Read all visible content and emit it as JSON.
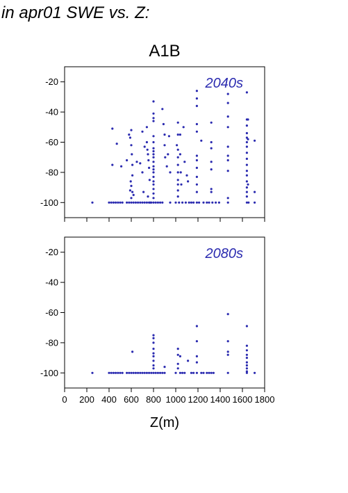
{
  "heading": "in apr01 SWE vs. Z:",
  "scenario": "A1B",
  "xlabel": "Z(m)",
  "colors": {
    "points": "#2b2bb0",
    "period_label": "#2b2bb0",
    "frame": "#000000"
  },
  "chart_data": [
    {
      "type": "scatter",
      "annotation": "2040s",
      "xlim": [
        0,
        1800
      ],
      "ylim": [
        -110,
        -10
      ],
      "xticks": [
        "0",
        "200",
        "400",
        "600",
        "800",
        "1000",
        "1200",
        "1400",
        "1600",
        "1800"
      ],
      "yticks": [
        "-20",
        "-40",
        "-60",
        "-80",
        "-100"
      ],
      "show_x_ticklabels": false,
      "grid": false,
      "points": [
        [
          250,
          -100
        ],
        [
          400,
          -100
        ],
        [
          420,
          -100
        ],
        [
          440,
          -100
        ],
        [
          460,
          -100
        ],
        [
          480,
          -100
        ],
        [
          500,
          -100
        ],
        [
          520,
          -100
        ],
        [
          430,
          -51
        ],
        [
          430,
          -75
        ],
        [
          470,
          -61
        ],
        [
          510,
          -76
        ],
        [
          560,
          -100
        ],
        [
          580,
          -100
        ],
        [
          600,
          -100
        ],
        [
          620,
          -100
        ],
        [
          640,
          -100
        ],
        [
          660,
          -100
        ],
        [
          680,
          -100
        ],
        [
          700,
          -100
        ],
        [
          720,
          -100
        ],
        [
          740,
          -100
        ],
        [
          760,
          -100
        ],
        [
          780,
          -100
        ],
        [
          560,
          -72
        ],
        [
          580,
          -55
        ],
        [
          590,
          -57
        ],
        [
          600,
          -52
        ],
        [
          600,
          -62
        ],
        [
          605,
          -68
        ],
        [
          610,
          -75
        ],
        [
          610,
          -82
        ],
        [
          595,
          -86
        ],
        [
          600,
          -89
        ],
        [
          590,
          -92
        ],
        [
          610,
          -93
        ],
        [
          600,
          -97
        ],
        [
          620,
          -95
        ],
        [
          650,
          -73
        ],
        [
          680,
          -74
        ],
        [
          700,
          -53
        ],
        [
          700,
          -80
        ],
        [
          710,
          -93
        ],
        [
          720,
          -63
        ],
        [
          740,
          -50
        ],
        [
          740,
          -60
        ],
        [
          745,
          -65
        ],
        [
          750,
          -68
        ],
        [
          755,
          -72
        ],
        [
          760,
          -77
        ],
        [
          765,
          -85
        ],
        [
          750,
          -96
        ],
        [
          770,
          -100
        ],
        [
          800,
          -33
        ],
        [
          800,
          -41
        ],
        [
          800,
          -44
        ],
        [
          800,
          -46
        ],
        [
          800,
          -56
        ],
        [
          800,
          -60
        ],
        [
          800,
          -64
        ],
        [
          800,
          -66
        ],
        [
          800,
          -68
        ],
        [
          800,
          -70
        ],
        [
          800,
          -73
        ],
        [
          800,
          -76
        ],
        [
          800,
          -78
        ],
        [
          800,
          -80
        ],
        [
          800,
          -83
        ],
        [
          800,
          -86
        ],
        [
          800,
          -88
        ],
        [
          800,
          -91
        ],
        [
          800,
          -94
        ],
        [
          800,
          -97
        ],
        [
          800,
          -100
        ],
        [
          820,
          -100
        ],
        [
          840,
          -100
        ],
        [
          860,
          -100
        ],
        [
          880,
          -100
        ],
        [
          880,
          -38
        ],
        [
          890,
          -48
        ],
        [
          900,
          -55
        ],
        [
          900,
          -62
        ],
        [
          905,
          -70
        ],
        [
          920,
          -76
        ],
        [
          930,
          -68
        ],
        [
          940,
          -56
        ],
        [
          950,
          -80
        ],
        [
          950,
          -100
        ],
        [
          1000,
          -100
        ],
        [
          1010,
          -62
        ],
        [
          1020,
          -47
        ],
        [
          1020,
          -55
        ],
        [
          1020,
          -65
        ],
        [
          1020,
          -70
        ],
        [
          1020,
          -75
        ],
        [
          1020,
          -80
        ],
        [
          1020,
          -85
        ],
        [
          1020,
          -88
        ],
        [
          1020,
          -92
        ],
        [
          1020,
          -96
        ],
        [
          1030,
          -100
        ],
        [
          1040,
          -55
        ],
        [
          1040,
          -68
        ],
        [
          1045,
          -80
        ],
        [
          1050,
          -88
        ],
        [
          1060,
          -100
        ],
        [
          1070,
          -50
        ],
        [
          1080,
          -73
        ],
        [
          1090,
          -100
        ],
        [
          1100,
          -82
        ],
        [
          1110,
          -86
        ],
        [
          1120,
          -100
        ],
        [
          1140,
          -100
        ],
        [
          1160,
          -100
        ],
        [
          1190,
          -26
        ],
        [
          1190,
          -31
        ],
        [
          1190,
          -36
        ],
        [
          1190,
          -48
        ],
        [
          1190,
          -53
        ],
        [
          1190,
          -69
        ],
        [
          1190,
          -72
        ],
        [
          1190,
          -77
        ],
        [
          1190,
          -83
        ],
        [
          1190,
          -88
        ],
        [
          1190,
          -93
        ],
        [
          1190,
          -100
        ],
        [
          1210,
          -100
        ],
        [
          1230,
          -59
        ],
        [
          1250,
          -100
        ],
        [
          1280,
          -100
        ],
        [
          1300,
          -100
        ],
        [
          1320,
          -47
        ],
        [
          1320,
          -60
        ],
        [
          1320,
          -64
        ],
        [
          1320,
          -73
        ],
        [
          1320,
          -78
        ],
        [
          1320,
          -91
        ],
        [
          1320,
          -93
        ],
        [
          1330,
          -100
        ],
        [
          1360,
          -100
        ],
        [
          1390,
          -100
        ],
        [
          1470,
          -28
        ],
        [
          1470,
          -34
        ],
        [
          1470,
          -43
        ],
        [
          1470,
          -50
        ],
        [
          1470,
          -63
        ],
        [
          1470,
          -69
        ],
        [
          1470,
          -72
        ],
        [
          1470,
          -79
        ],
        [
          1470,
          -97
        ],
        [
          1470,
          -100
        ],
        [
          1640,
          -27
        ],
        [
          1640,
          -45
        ],
        [
          1640,
          -49
        ],
        [
          1640,
          -54
        ],
        [
          1640,
          -57
        ],
        [
          1640,
          -60
        ],
        [
          1640,
          -63
        ],
        [
          1640,
          -67
        ],
        [
          1640,
          -71
        ],
        [
          1640,
          -75
        ],
        [
          1640,
          -79
        ],
        [
          1640,
          -82
        ],
        [
          1640,
          -86
        ],
        [
          1640,
          -90
        ],
        [
          1640,
          -93
        ],
        [
          1640,
          -96
        ],
        [
          1640,
          -100
        ],
        [
          1650,
          -45
        ],
        [
          1650,
          -58
        ],
        [
          1650,
          -88
        ],
        [
          1655,
          -100
        ],
        [
          1710,
          -59
        ],
        [
          1710,
          -93
        ],
        [
          1710,
          -100
        ]
      ]
    },
    {
      "type": "scatter",
      "annotation": "2080s",
      "xlim": [
        0,
        1800
      ],
      "ylim": [
        -110,
        -10
      ],
      "xticks": [
        "0",
        "200",
        "400",
        "600",
        "800",
        "1000",
        "1200",
        "1400",
        "1600",
        "1800"
      ],
      "yticks": [
        "-20",
        "-40",
        "-60",
        "-80",
        "-100"
      ],
      "show_x_ticklabels": true,
      "grid": false,
      "points": [
        [
          250,
          -100
        ],
        [
          400,
          -100
        ],
        [
          420,
          -100
        ],
        [
          440,
          -100
        ],
        [
          460,
          -100
        ],
        [
          480,
          -100
        ],
        [
          500,
          -100
        ],
        [
          520,
          -100
        ],
        [
          560,
          -100
        ],
        [
          580,
          -100
        ],
        [
          600,
          -100
        ],
        [
          620,
          -100
        ],
        [
          640,
          -100
        ],
        [
          660,
          -100
        ],
        [
          680,
          -100
        ],
        [
          700,
          -100
        ],
        [
          720,
          -100
        ],
        [
          740,
          -100
        ],
        [
          760,
          -100
        ],
        [
          780,
          -100
        ],
        [
          610,
          -86
        ],
        [
          800,
          -75
        ],
        [
          800,
          -77
        ],
        [
          800,
          -80
        ],
        [
          800,
          -84
        ],
        [
          800,
          -87
        ],
        [
          800,
          -89
        ],
        [
          800,
          -92
        ],
        [
          800,
          -95
        ],
        [
          800,
          -97
        ],
        [
          800,
          -100
        ],
        [
          820,
          -100
        ],
        [
          840,
          -100
        ],
        [
          860,
          -100
        ],
        [
          880,
          -100
        ],
        [
          900,
          -96
        ],
        [
          900,
          -100
        ],
        [
          1000,
          -100
        ],
        [
          1020,
          -84
        ],
        [
          1020,
          -88
        ],
        [
          1020,
          -94
        ],
        [
          1020,
          -97
        ],
        [
          1040,
          -89
        ],
        [
          1040,
          -100
        ],
        [
          1060,
          -100
        ],
        [
          1080,
          -100
        ],
        [
          1110,
          -92
        ],
        [
          1140,
          -100
        ],
        [
          1160,
          -100
        ],
        [
          1190,
          -69
        ],
        [
          1190,
          -79
        ],
        [
          1190,
          -89
        ],
        [
          1190,
          -93
        ],
        [
          1190,
          -100
        ],
        [
          1230,
          -100
        ],
        [
          1250,
          -100
        ],
        [
          1280,
          -100
        ],
        [
          1300,
          -100
        ],
        [
          1320,
          -100
        ],
        [
          1340,
          -100
        ],
        [
          1470,
          -61
        ],
        [
          1470,
          -79
        ],
        [
          1470,
          -86
        ],
        [
          1470,
          -88
        ],
        [
          1470,
          -100
        ],
        [
          1640,
          -69
        ],
        [
          1640,
          -82
        ],
        [
          1640,
          -85
        ],
        [
          1640,
          -88
        ],
        [
          1640,
          -90
        ],
        [
          1640,
          -93
        ],
        [
          1640,
          -95
        ],
        [
          1640,
          -97
        ],
        [
          1640,
          -99
        ],
        [
          1640,
          -100
        ],
        [
          1710,
          -100
        ]
      ]
    }
  ]
}
